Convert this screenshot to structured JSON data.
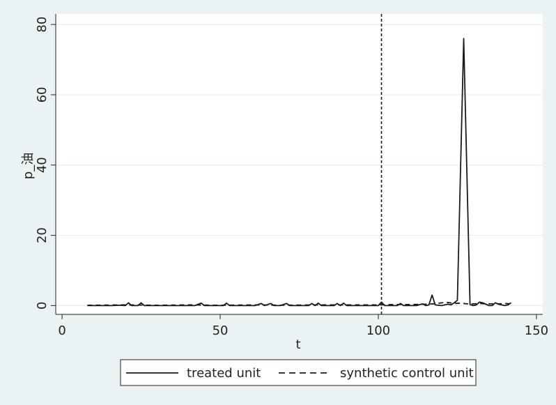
{
  "chart_data": {
    "type": "line",
    "xlabel": "t",
    "ylabel": "p_油",
    "xlim": [
      -2,
      152
    ],
    "ylim": [
      -2.5,
      83
    ],
    "xticks": [
      0,
      50,
      100,
      150
    ],
    "yticks": [
      0,
      20,
      40,
      60,
      80
    ],
    "grid": true,
    "legend_position": "bottom",
    "vline": {
      "x": 101,
      "style": "dashed"
    },
    "series": [
      {
        "name": "treated unit",
        "style": "solid",
        "points": [
          [
            8,
            0
          ],
          [
            10,
            0
          ],
          [
            12,
            0
          ],
          [
            14,
            0
          ],
          [
            16,
            0
          ],
          [
            18,
            0.1
          ],
          [
            20,
            0
          ],
          [
            21,
            0.8
          ],
          [
            22,
            0
          ],
          [
            24,
            0
          ],
          [
            25,
            0.8
          ],
          [
            26,
            0
          ],
          [
            28,
            0
          ],
          [
            30,
            0
          ],
          [
            32,
            0
          ],
          [
            34,
            0
          ],
          [
            36,
            0
          ],
          [
            38,
            0
          ],
          [
            40,
            0
          ],
          [
            42,
            0
          ],
          [
            44,
            0.7
          ],
          [
            45,
            0
          ],
          [
            47,
            0
          ],
          [
            49,
            0
          ],
          [
            51,
            0
          ],
          [
            52,
            0.7
          ],
          [
            53,
            0
          ],
          [
            55,
            0
          ],
          [
            57,
            0
          ],
          [
            59,
            0
          ],
          [
            61,
            0
          ],
          [
            63,
            0.6
          ],
          [
            64,
            0
          ],
          [
            66,
            0.6
          ],
          [
            67,
            0
          ],
          [
            69,
            0
          ],
          [
            71,
            0.6
          ],
          [
            72,
            0
          ],
          [
            74,
            0
          ],
          [
            76,
            0
          ],
          [
            78,
            0
          ],
          [
            79,
            0.6
          ],
          [
            80,
            0
          ],
          [
            81,
            0.7
          ],
          [
            82,
            0
          ],
          [
            84,
            0
          ],
          [
            86,
            0
          ],
          [
            87,
            0.6
          ],
          [
            88,
            0
          ],
          [
            89,
            0.7
          ],
          [
            90,
            0
          ],
          [
            92,
            0
          ],
          [
            94,
            0
          ],
          [
            96,
            0
          ],
          [
            98,
            0
          ],
          [
            100,
            0
          ],
          [
            101,
            1
          ],
          [
            102,
            0
          ],
          [
            104,
            0
          ],
          [
            106,
            0
          ],
          [
            107,
            0.6
          ],
          [
            108,
            0
          ],
          [
            110,
            0
          ],
          [
            112,
            0
          ],
          [
            114,
            0.5
          ],
          [
            115,
            0
          ],
          [
            116,
            0.2
          ],
          [
            117,
            3
          ],
          [
            118,
            0.2
          ],
          [
            120,
            0
          ],
          [
            122,
            0.4
          ],
          [
            123,
            0.2
          ],
          [
            124,
            0.8
          ],
          [
            125,
            1.5
          ],
          [
            127,
            76
          ],
          [
            129,
            0.3
          ],
          [
            130,
            0
          ],
          [
            131,
            0.2
          ],
          [
            132,
            1
          ],
          [
            133,
            0.8
          ],
          [
            134,
            0.4
          ],
          [
            135,
            0
          ],
          [
            136,
            0
          ],
          [
            137,
            0.8
          ],
          [
            138,
            0.4
          ],
          [
            140,
            0
          ],
          [
            141,
            0.2
          ],
          [
            142,
            0.8
          ]
        ]
      },
      {
        "name": "synthetic control unit",
        "style": "dashed",
        "points": [
          [
            8,
            0.1
          ],
          [
            20,
            0.2
          ],
          [
            30,
            0.1
          ],
          [
            40,
            0.2
          ],
          [
            50,
            0.1
          ],
          [
            60,
            0.2
          ],
          [
            70,
            0.1
          ],
          [
            80,
            0.2
          ],
          [
            90,
            0.2
          ],
          [
            100,
            0.2
          ],
          [
            105,
            0.3
          ],
          [
            110,
            0.3
          ],
          [
            115,
            0.4
          ],
          [
            118,
            0.5
          ],
          [
            120,
            0.8
          ],
          [
            122,
            0.9
          ],
          [
            124,
            0.6
          ],
          [
            126,
            0.7
          ],
          [
            128,
            0.5
          ],
          [
            130,
            0.5
          ],
          [
            132,
            0.6
          ],
          [
            134,
            0.5
          ],
          [
            136,
            0.5
          ],
          [
            138,
            0.5
          ],
          [
            140,
            0.6
          ],
          [
            142,
            0.5
          ]
        ]
      }
    ],
    "colors": {
      "line": "#1a1a1a",
      "grid": "#e6eef0",
      "plot_bg": "#ffffff",
      "page_bg": "#eaf2f3"
    }
  }
}
